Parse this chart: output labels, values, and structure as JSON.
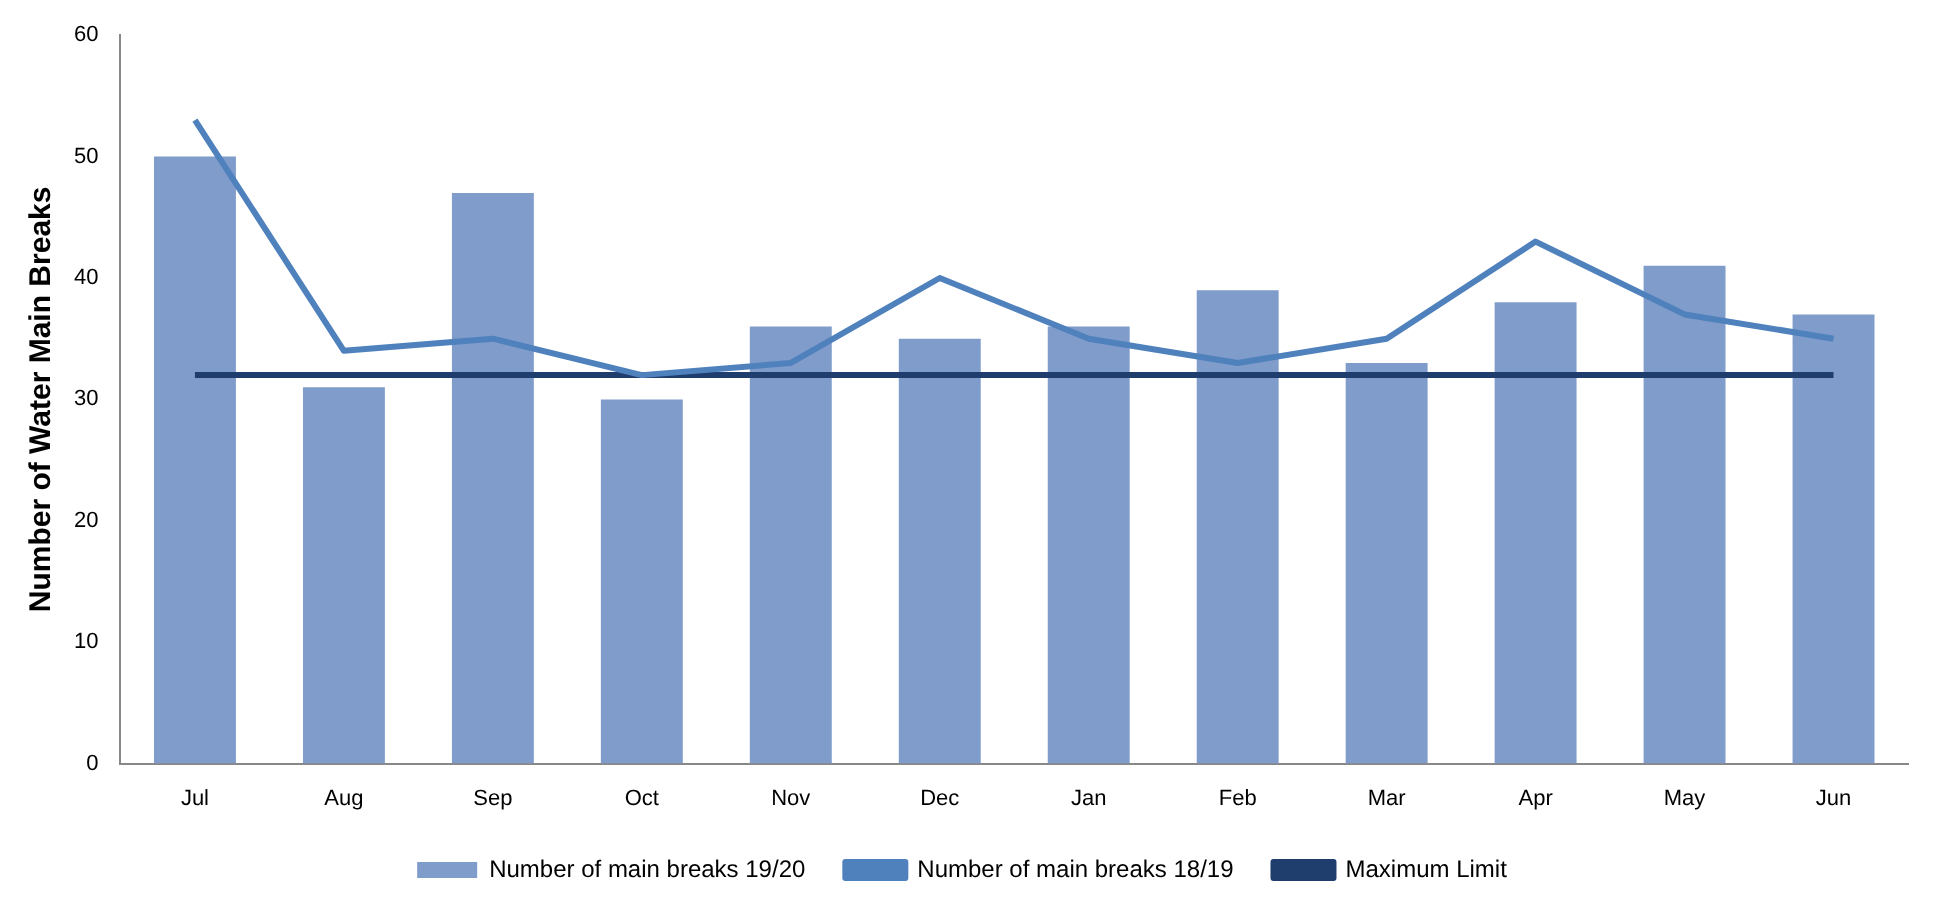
{
  "chart_data": {
    "type": "bar",
    "ylabel": "Number of Water Main Breaks",
    "categories": [
      "Jul",
      "Aug",
      "Sep",
      "Oct",
      "Nov",
      "Dec",
      "Jan",
      "Feb",
      "Mar",
      "Apr",
      "May",
      "Jun"
    ],
    "series": [
      {
        "name": "Number of main breaks 19/20",
        "color": "#7f9ccb",
        "values": [
          50,
          31,
          47,
          30,
          36,
          35,
          36,
          39,
          33,
          38,
          41,
          37
        ]
      },
      {
        "name": "Number of main breaks 18/19",
        "type": "line",
        "color": "#4f81bd",
        "values": [
          53,
          34,
          35,
          32,
          33,
          40,
          35,
          33,
          35,
          43,
          37,
          35
        ]
      },
      {
        "name": "Maximum Limit",
        "type": "line",
        "color": "#1f3e6e",
        "values": [
          32,
          32,
          32,
          32,
          32,
          32,
          32,
          32,
          32,
          32,
          32,
          32
        ]
      }
    ],
    "ylim": [
      0,
      60
    ],
    "yticks": [
      0,
      10,
      20,
      30,
      40,
      50,
      60
    ],
    "grid": false,
    "legend": "bottom",
    "marker": "none"
  }
}
